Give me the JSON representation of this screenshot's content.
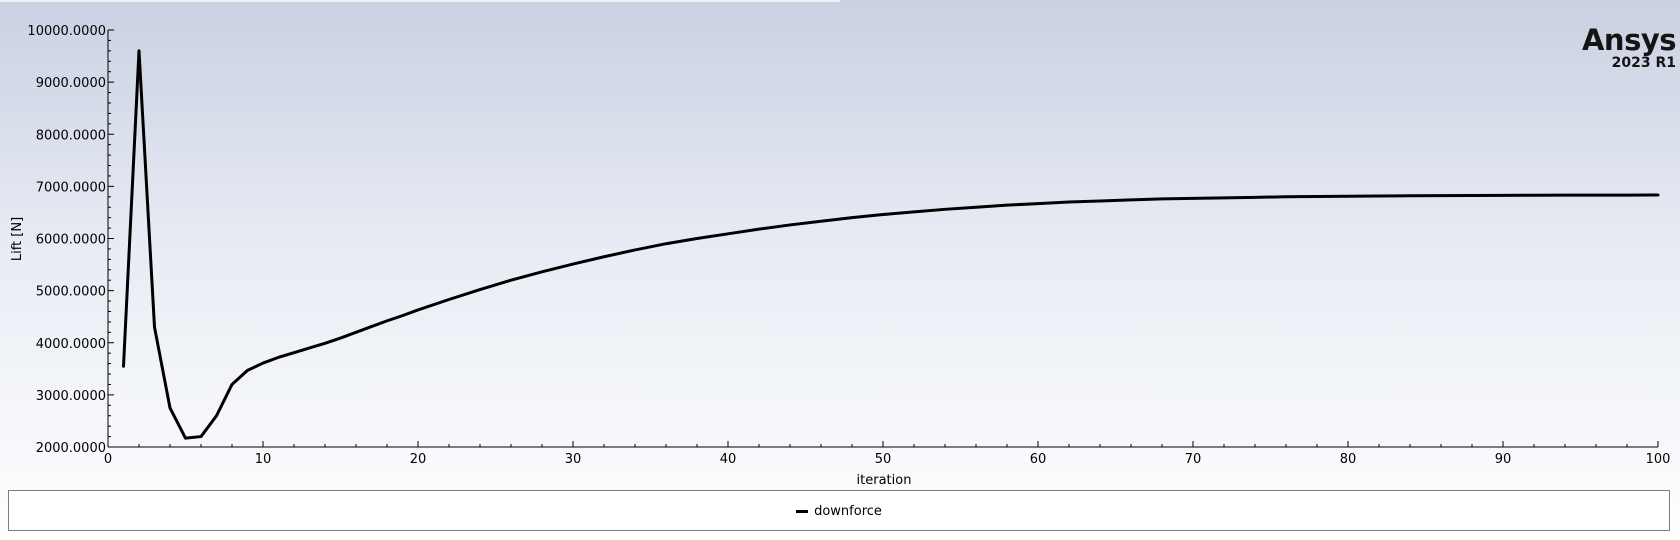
{
  "branding": {
    "product": "Ansys",
    "version": "2023 R1"
  },
  "legend": {
    "items": [
      {
        "label": "downforce",
        "color": "#000000"
      }
    ]
  },
  "chart_data": {
    "type": "line",
    "title": "",
    "xlabel": "iteration",
    "ylabel": "Lift [N]",
    "xlim": [
      0,
      100
    ],
    "ylim": [
      2000,
      10000
    ],
    "xticks": [
      0,
      10,
      20,
      30,
      40,
      50,
      60,
      70,
      80,
      90,
      100
    ],
    "yticks": [
      2000,
      3000,
      4000,
      5000,
      6000,
      7000,
      8000,
      9000,
      10000
    ],
    "xtick_labels": [
      "0",
      "10",
      "20",
      "30",
      "40",
      "50",
      "60",
      "70",
      "80",
      "90",
      "100"
    ],
    "ytick_labels": [
      "2000.0000",
      "3000.0000",
      "4000.0000",
      "5000.0000",
      "6000.0000",
      "7000.0000",
      "8000.0000",
      "9000.0000",
      "10000.0000"
    ],
    "grid": false,
    "legend_position": "bottom",
    "series": [
      {
        "name": "downforce",
        "color": "#000000",
        "x": [
          1,
          2,
          3,
          4,
          5,
          6,
          7,
          8,
          9,
          10,
          11,
          12,
          13,
          14,
          15,
          16,
          17,
          18,
          19,
          20,
          22,
          24,
          26,
          28,
          30,
          32,
          34,
          36,
          38,
          40,
          42,
          44,
          46,
          48,
          50,
          52,
          54,
          56,
          58,
          60,
          62,
          64,
          66,
          68,
          70,
          72,
          74,
          76,
          78,
          80,
          82,
          84,
          86,
          88,
          90,
          92,
          94,
          96,
          98,
          100
        ],
        "y": [
          3550,
          9600,
          4300,
          2750,
          2170,
          2200,
          2600,
          3200,
          3470,
          3610,
          3720,
          3810,
          3900,
          3990,
          4090,
          4200,
          4310,
          4420,
          4520,
          4630,
          4830,
          5020,
          5200,
          5360,
          5510,
          5650,
          5780,
          5900,
          6000,
          6090,
          6180,
          6260,
          6330,
          6400,
          6460,
          6510,
          6560,
          6600,
          6640,
          6670,
          6700,
          6720,
          6740,
          6760,
          6770,
          6780,
          6790,
          6800,
          6805,
          6810,
          6815,
          6820,
          6822,
          6825,
          6828,
          6830,
          6831,
          6832,
          6833,
          6834
        ]
      }
    ]
  }
}
